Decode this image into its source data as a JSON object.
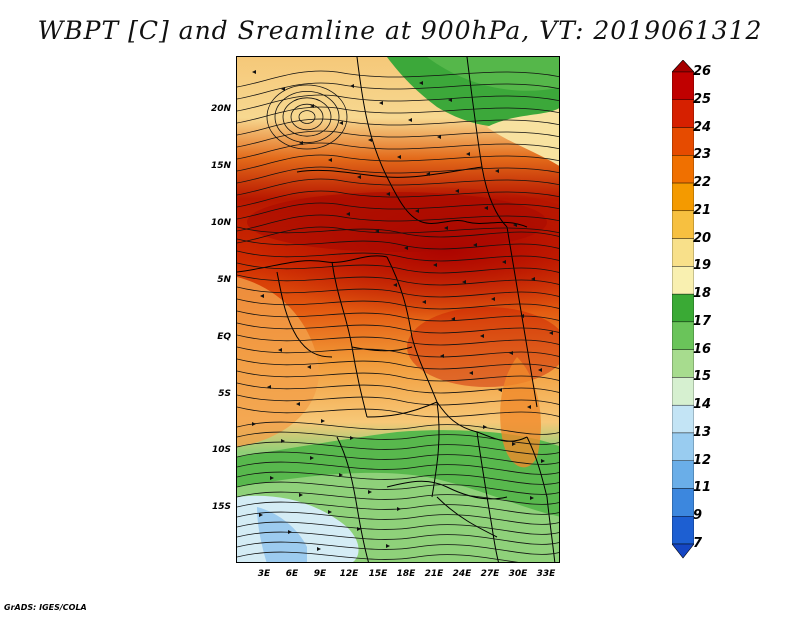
{
  "title": "WBPT [C] and Sreamline at 900hPa, VT: 2019061312",
  "footer": "GrADS: IGES/COLA",
  "map": {
    "lon_ticks": [
      "3E",
      "6E",
      "9E",
      "12E",
      "15E",
      "18E",
      "21E",
      "24E",
      "27E",
      "30E",
      "33E"
    ],
    "lat_ticks": [
      "20N",
      "15N",
      "10N",
      "5N",
      "EQ",
      "5S",
      "10S",
      "15S"
    ],
    "field": "Wet-bulb potential temperature",
    "overlay": "streamlines",
    "level": "900hPa",
    "valid_time": "2019061312"
  },
  "colorbar": {
    "labels": [
      "26",
      "25",
      "24",
      "23",
      "22",
      "21",
      "20",
      "19",
      "18",
      "17",
      "16",
      "15",
      "14",
      "13",
      "12",
      "11",
      "9",
      "7"
    ],
    "colors": [
      "#a50000",
      "#c00000",
      "#d62000",
      "#e64b00",
      "#f07000",
      "#f49a00",
      "#f7c040",
      "#f8e08a",
      "#f9f0b0",
      "#3aaa35",
      "#6ac45a",
      "#a7dc8e",
      "#d6f0d0",
      "#c3e4f5",
      "#99ccf0",
      "#6aaee8",
      "#3c87de",
      "#1d5fd2",
      "#1546c3"
    ]
  }
}
